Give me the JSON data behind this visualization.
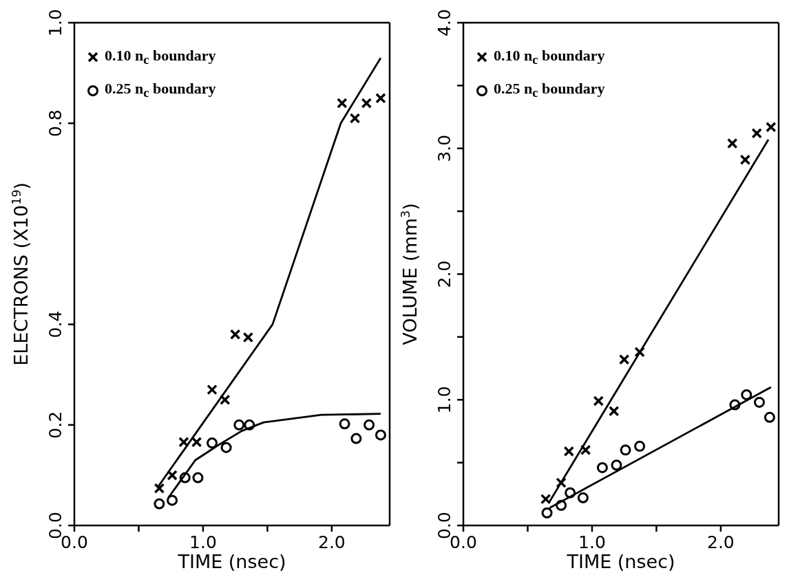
{
  "chart_data": [
    {
      "type": "scatter",
      "xlabel": "TIME (nsec)",
      "ylabel": "ELECTRONS (X10$^{19}$)",
      "legend": "top left",
      "xlim": [
        0,
        2.45
      ],
      "xticks": [
        {
          "value": 0,
          "label": "0.0"
        },
        {
          "value": 0.5,
          "label": null
        },
        {
          "value": 1,
          "label": "1.0"
        },
        {
          "value": 1.5,
          "label": null
        },
        {
          "value": 2,
          "label": "2.0"
        }
      ],
      "ylim": [
        0,
        1
      ],
      "yticks": [
        {
          "value": 0,
          "label": "0.0"
        },
        {
          "value": 0.2,
          "label": "0.2"
        },
        {
          "value": 0.4,
          "label": "0.4"
        },
        {
          "value": 0.8,
          "label": "0.8"
        },
        {
          "value": 1,
          "label": "1.0"
        }
      ],
      "series": [
        {
          "name": "0.10 n$_{c}$ boundary",
          "type": "scatter",
          "marker": "cross",
          "color": "#000000",
          "x": [
            0.66,
            0.76,
            0.85,
            0.95,
            1.07,
            1.17,
            1.25,
            1.35,
            2.08,
            2.18,
            2.27,
            2.38
          ],
          "values": [
            0.074,
            0.1,
            0.166,
            0.166,
            0.27,
            0.25,
            0.38,
            0.374,
            0.84,
            0.81,
            0.84,
            0.85
          ]
        },
        {
          "name": "0.25 n$_{c}$ boundary",
          "type": "scatter",
          "marker": "circle",
          "color": "#000000",
          "x": [
            0.66,
            0.76,
            0.86,
            0.96,
            1.07,
            1.18,
            1.28,
            1.36,
            2.1,
            2.19,
            2.29,
            2.38
          ],
          "values": [
            0.043,
            0.05,
            0.095,
            0.095,
            0.164,
            0.155,
            0.2,
            0.2,
            0.202,
            0.173,
            0.2,
            0.18
          ]
        },
        {
          "type": "line",
          "color": "#000000",
          "x": [
            0.65,
            1.54,
            2.07,
            2.38
          ],
          "values": [
            0.077,
            0.4,
            0.8,
            0.93
          ]
        },
        {
          "type": "line",
          "color": "#000000",
          "x": [
            0.73,
            0.94,
            1.12,
            1.3,
            1.47,
            1.92,
            2.38
          ],
          "values": [
            0.055,
            0.13,
            0.16,
            0.188,
            0.205,
            0.22,
            0.222
          ]
        }
      ]
    },
    {
      "type": "scatter",
      "xlabel": "TIME (nsec)",
      "ylabel": "VOLUME (mm$^{3}$)",
      "legend": "top left",
      "xlim": [
        0,
        2.45
      ],
      "xticks": [
        {
          "value": 0,
          "label": "0.0"
        },
        {
          "value": 0.5,
          "label": null
        },
        {
          "value": 1,
          "label": "1.0"
        },
        {
          "value": 1.5,
          "label": null
        },
        {
          "value": 2,
          "label": "2.0"
        }
      ],
      "ylim": [
        0,
        4
      ],
      "yticks": [
        {
          "value": 0,
          "label": "0.0"
        },
        {
          "value": 0.5,
          "label": null
        },
        {
          "value": 1,
          "label": "1.0"
        },
        {
          "value": 1.5,
          "label": null
        },
        {
          "value": 2,
          "label": "2.0"
        },
        {
          "value": 2.5,
          "label": null
        },
        {
          "value": 3,
          "label": "3.0"
        },
        {
          "value": 3.5,
          "label": null
        },
        {
          "value": 4,
          "label": "4.0"
        }
      ],
      "series": [
        {
          "name": "0.10 n$_{c}$ boundary",
          "type": "scatter",
          "marker": "cross",
          "color": "#000000",
          "x": [
            0.64,
            0.76,
            0.82,
            0.95,
            1.05,
            1.17,
            1.25,
            1.37,
            2.09,
            2.19,
            2.28,
            2.39
          ],
          "values": [
            0.21,
            0.34,
            0.59,
            0.6,
            0.99,
            0.91,
            1.32,
            1.38,
            3.04,
            2.91,
            3.12,
            3.17
          ]
        },
        {
          "name": "0.25 n$_{c}$ boundary",
          "type": "scatter",
          "marker": "circle",
          "color": "#000000",
          "x": [
            0.65,
            0.76,
            0.83,
            0.93,
            1.08,
            1.19,
            1.26,
            1.37,
            2.11,
            2.2,
            2.3,
            2.38
          ],
          "values": [
            0.1,
            0.16,
            0.26,
            0.22,
            0.46,
            0.48,
            0.6,
            0.63,
            0.96,
            1.04,
            0.98,
            0.86
          ]
        },
        {
          "type": "line",
          "color": "#000000",
          "x": [
            0.67,
            2.37
          ],
          "values": [
            0.19,
            3.07
          ]
        },
        {
          "type": "line",
          "color": "#000000",
          "x": [
            0.67,
            2.39
          ],
          "values": [
            0.14,
            1.1
          ]
        }
      ]
    }
  ]
}
